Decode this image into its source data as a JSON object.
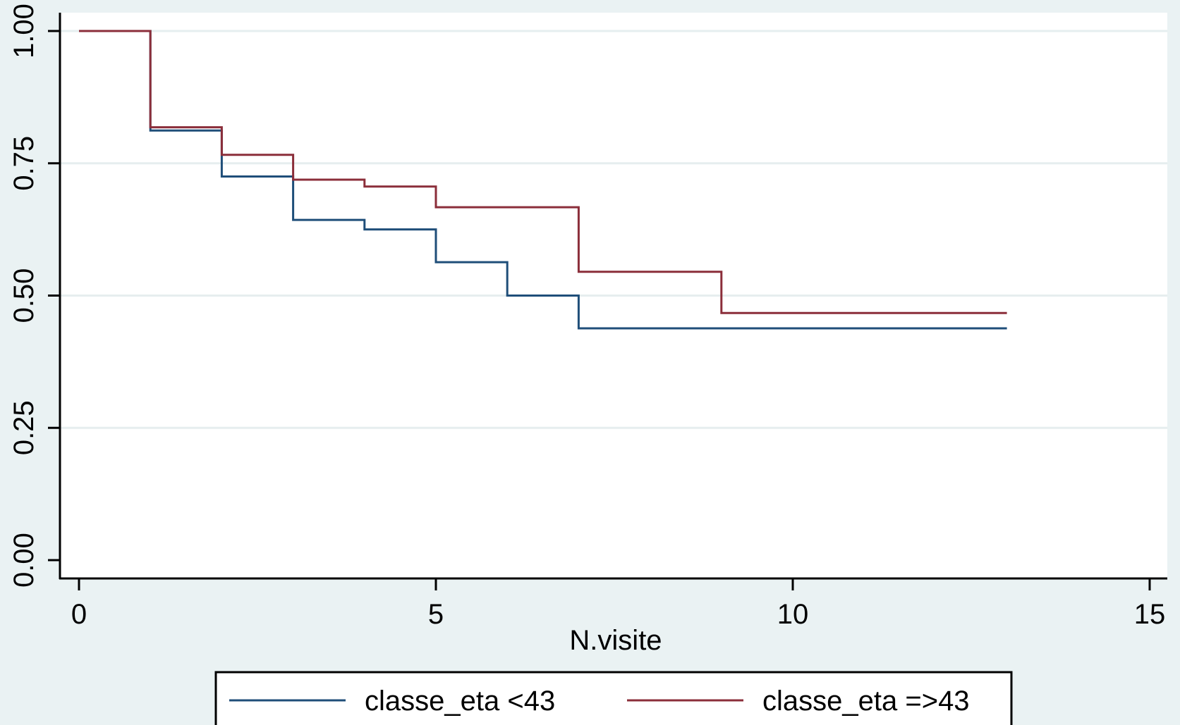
{
  "chart_data": {
    "type": "line",
    "title": "",
    "xlabel": "N.visite",
    "ylabel": "",
    "xlim": [
      0,
      15
    ],
    "ylim": [
      0,
      1
    ],
    "x_ticks": [
      "0",
      "5",
      "10",
      "15"
    ],
    "y_ticks": [
      "0.00",
      "0.25",
      "0.50",
      "0.75",
      "1.00"
    ],
    "grid": "horizontal",
    "legend_position": "bottom",
    "step": true,
    "series": [
      {
        "name": "classe_eta <43",
        "color": "#1f4e79",
        "x": [
          0,
          1,
          2,
          3,
          4,
          5,
          6,
          7,
          13
        ],
        "y": [
          1.0,
          0.812,
          0.725,
          0.643,
          0.625,
          0.563,
          0.5,
          0.438,
          0.438
        ]
      },
      {
        "name": "classe_eta =>43",
        "color": "#8b2e3a",
        "x": [
          0,
          1,
          2,
          3,
          4,
          5,
          7,
          9,
          13
        ],
        "y": [
          1.0,
          0.818,
          0.766,
          0.719,
          0.706,
          0.667,
          0.545,
          0.467,
          0.467
        ]
      }
    ]
  }
}
